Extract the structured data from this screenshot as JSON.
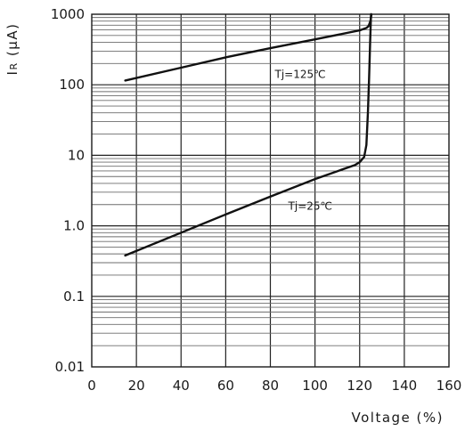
{
  "chart_data": {
    "type": "line",
    "xlabel": "Voltage (%)",
    "ylabel": "IR (μA)",
    "ylabel_main": "I",
    "ylabel_sub": "R",
    "ylabel_unit": " (μA)",
    "xlim": [
      0,
      160
    ],
    "ylim": [
      0.01,
      1000
    ],
    "yscale": "log",
    "grid": true,
    "x_ticks": [
      0,
      20,
      40,
      60,
      80,
      100,
      120,
      140,
      160
    ],
    "x_tick_labels": [
      "0",
      "20",
      "40",
      "60",
      "80",
      "100",
      "120",
      "140",
      "160"
    ],
    "y_ticks": [
      0.01,
      0.1,
      1,
      10,
      100,
      1000
    ],
    "y_tick_labels": [
      "0.01",
      "0.1",
      "1.0",
      "10",
      "100",
      "1000"
    ],
    "series": [
      {
        "label": "Tj=125℃",
        "x": [
          15,
          40,
          60,
          80,
          100,
          120,
          123,
          124,
          124.8,
          125.3
        ],
        "y": [
          115,
          175,
          245,
          330,
          440,
          590,
          640,
          680,
          800,
          1000
        ]
      },
      {
        "label": "Tj=25℃",
        "x": [
          15,
          40,
          60,
          80,
          100,
          118,
          120,
          122,
          123,
          123.7,
          124.2,
          124.7,
          125.1
        ],
        "y": [
          0.38,
          0.8,
          1.45,
          2.6,
          4.6,
          7.3,
          8.0,
          9.5,
          14,
          40,
          120,
          400,
          1000
        ]
      }
    ],
    "annotations": [
      {
        "text": "Tj=125℃",
        "x": 82,
        "y": 125
      },
      {
        "text": "Tj=25℃",
        "x": 88,
        "y": 1.7
      }
    ]
  }
}
